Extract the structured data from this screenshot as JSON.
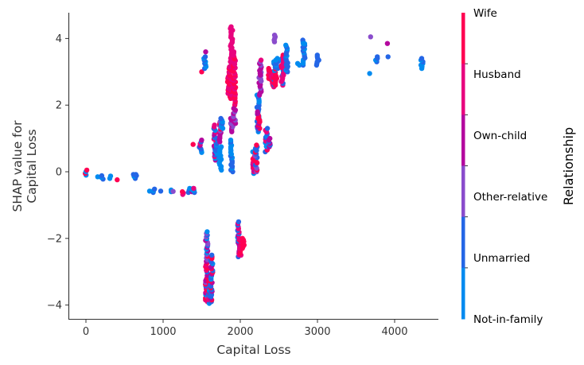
{
  "chart_data": {
    "type": "scatter",
    "title": "",
    "xlabel": "Capital Loss",
    "ylabel": [
      "SHAP value for",
      "Capital Loss"
    ],
    "xlim": [
      -220,
      4550
    ],
    "ylim": [
      -4.45,
      4.8
    ],
    "x_ticks": [
      0,
      1000,
      2000,
      3000,
      4000
    ],
    "x_tick_labels": [
      "0",
      "1000",
      "2000",
      "3000",
      "4000"
    ],
    "y_ticks": [
      4,
      2,
      0,
      -2,
      -4
    ],
    "y_tick_labels": [
      "4",
      "2",
      "0",
      "−2",
      "−4"
    ],
    "grid": false,
    "colorbar": {
      "title": "Relationship",
      "categories": [
        "Wife",
        "Husband",
        "Own-child",
        "Other-relative",
        "Unmarried",
        "Not-in-family"
      ],
      "colors": [
        "#ff0052",
        "#e8047e",
        "#b4089e",
        "#8a4ccc",
        "#2466e6",
        "#008bf0"
      ]
    },
    "point_size": 3.2,
    "clusters": [
      {
        "x": 0,
        "y_min": -0.1,
        "y_max": 0.05,
        "cats": [
          0,
          5,
          4,
          1
        ]
      },
      {
        "x": 155,
        "y_min": -0.15,
        "y_max": -0.13,
        "cats": [
          5
        ]
      },
      {
        "x": 213,
        "y_min": -0.22,
        "y_max": -0.12,
        "cats": [
          4,
          5
        ]
      },
      {
        "x": 320,
        "y_min": -0.2,
        "y_max": -0.13,
        "cats": [
          4,
          5
        ]
      },
      {
        "x": 419,
        "y_min": -0.24,
        "y_max": -0.22,
        "cats": [
          0
        ]
      },
      {
        "x": 625,
        "y_min": -0.2,
        "y_max": -0.08,
        "cats": [
          5,
          4
        ]
      },
      {
        "x": 653,
        "y_min": -0.12,
        "y_max": -0.08,
        "cats": [
          4
        ]
      },
      {
        "x": 810,
        "y_min": -0.58,
        "y_max": -0.56,
        "cats": [
          5
        ]
      },
      {
        "x": 880,
        "y_min": -0.62,
        "y_max": -0.52,
        "cats": [
          4,
          5
        ]
      },
      {
        "x": 974,
        "y_min": -0.58,
        "y_max": -0.56,
        "cats": [
          4
        ]
      },
      {
        "x": 1092,
        "y_min": -0.6,
        "y_max": -0.55,
        "cats": [
          5,
          4
        ]
      },
      {
        "x": 1138,
        "y_min": -0.59,
        "y_max": -0.57,
        "cats": [
          3
        ]
      },
      {
        "x": 1258,
        "y_min": -0.68,
        "y_max": -0.6,
        "cats": [
          0,
          1
        ]
      },
      {
        "x": 1340,
        "y_min": -0.62,
        "y_max": -0.5,
        "cats": [
          4,
          5
        ]
      },
      {
        "x": 1380,
        "y_min": -0.6,
        "y_max": -0.5,
        "cats": [
          4,
          5,
          2
        ]
      },
      {
        "x": 1408,
        "y_min": -0.62,
        "y_max": -0.5,
        "cats": [
          5,
          4,
          1
        ]
      },
      {
        "x": 1380,
        "y_min": 0.82,
        "y_max": 0.84,
        "cats": [
          0
        ]
      },
      {
        "x": 1485,
        "y_min": 0.58,
        "y_max": 0.95,
        "cats": [
          1,
          2,
          4,
          5
        ]
      },
      {
        "x": 1504,
        "y_min": 3.0,
        "y_max": 3.0,
        "cats": [
          0
        ]
      },
      {
        "x": 1540,
        "y_min": 3.1,
        "y_max": 3.45,
        "cats": [
          5,
          4
        ]
      },
      {
        "x": 1540,
        "y_min": 3.6,
        "y_max": 3.6,
        "cats": [
          2
        ]
      },
      {
        "x": 1564,
        "y_min": -3.9,
        "y_max": -1.8,
        "cats": [
          0,
          1,
          2,
          3,
          4,
          5
        ]
      },
      {
        "x": 1602,
        "y_min": -3.95,
        "y_max": -3.3,
        "cats": [
          5,
          4,
          1,
          0
        ]
      },
      {
        "x": 1628,
        "y_min": -3.9,
        "y_max": -2.5,
        "cats": [
          2,
          4,
          5,
          0
        ]
      },
      {
        "x": 1672,
        "y_min": 0.35,
        "y_max": 1.4,
        "cats": [
          2,
          1,
          4,
          5
        ]
      },
      {
        "x": 1705,
        "y_min": 0.5,
        "y_max": 1.0,
        "cats": [
          4,
          5
        ]
      },
      {
        "x": 1740,
        "y_min": 0.05,
        "y_max": 0.75,
        "cats": [
          5
        ]
      },
      {
        "x": 1740,
        "y_min": 0.9,
        "y_max": 1.5,
        "cats": [
          2,
          3,
          0
        ]
      },
      {
        "x": 1762,
        "y_min": 1.3,
        "y_max": 1.6,
        "cats": [
          5,
          4
        ]
      },
      {
        "x": 1848,
        "y_min": 2.35,
        "y_max": 2.85,
        "cats": [
          1,
          0
        ]
      },
      {
        "x": 1870,
        "y_min": 2.2,
        "y_max": 3.2,
        "cats": [
          1,
          0
        ]
      },
      {
        "x": 1887,
        "y_min": 3.3,
        "y_max": 4.35,
        "cats": [
          1
        ]
      },
      {
        "x": 1887,
        "y_min": 0.0,
        "y_max": 0.95,
        "cats": [
          5,
          4
        ]
      },
      {
        "x": 1887,
        "y_min": 1.2,
        "y_max": 1.6,
        "cats": [
          2,
          3
        ]
      },
      {
        "x": 1924,
        "y_min": 2.0,
        "y_max": 3.6,
        "cats": [
          1,
          0
        ]
      },
      {
        "x": 1924,
        "y_min": 1.4,
        "y_max": 1.9,
        "cats": [
          2,
          3
        ]
      },
      {
        "x": 1977,
        "y_min": -2.55,
        "y_max": -1.5,
        "cats": [
          2,
          5,
          4,
          1
        ]
      },
      {
        "x": 2001,
        "y_min": -2.5,
        "y_max": -2.0,
        "cats": [
          1,
          0
        ]
      },
      {
        "x": 2042,
        "y_min": -2.3,
        "y_max": -2.0,
        "cats": [
          0
        ]
      },
      {
        "x": 2174,
        "y_min": -0.05,
        "y_max": 0.6,
        "cats": [
          1,
          0,
          2,
          5
        ]
      },
      {
        "x": 2206,
        "y_min": 0.0,
        "y_max": 0.8,
        "cats": [
          0,
          4,
          3
        ]
      },
      {
        "x": 2231,
        "y_min": 1.2,
        "y_max": 2.3,
        "cats": [
          4,
          5
        ]
      },
      {
        "x": 2238,
        "y_min": 1.3,
        "y_max": 1.8,
        "cats": [
          0,
          2
        ]
      },
      {
        "x": 2258,
        "y_min": 2.3,
        "y_max": 3.3,
        "cats": [
          3,
          2
        ]
      },
      {
        "x": 2258,
        "y_min": 2.9,
        "y_max": 2.95,
        "cats": [
          2
        ]
      },
      {
        "x": 2282,
        "y_min": 3.35,
        "y_max": 3.35,
        "cats": [
          1
        ]
      },
      {
        "x": 2339,
        "y_min": 0.6,
        "y_max": 1.3,
        "cats": [
          5,
          4,
          0,
          1
        ]
      },
      {
        "x": 2377,
        "y_min": 0.75,
        "y_max": 1.0,
        "cats": [
          4,
          2
        ]
      },
      {
        "x": 2377,
        "y_min": 2.8,
        "y_max": 3.1,
        "cats": [
          1,
          0
        ]
      },
      {
        "x": 2415,
        "y_min": 2.6,
        "y_max": 3.0,
        "cats": [
          1,
          0
        ]
      },
      {
        "x": 2444,
        "y_min": 2.55,
        "y_max": 3.3,
        "cats": [
          0,
          1,
          5,
          4
        ]
      },
      {
        "x": 2444,
        "y_min": 3.9,
        "y_max": 4.1,
        "cats": [
          3
        ]
      },
      {
        "x": 2467,
        "y_min": 2.6,
        "y_max": 2.9,
        "cats": [
          0
        ]
      },
      {
        "x": 2472,
        "y_min": 3.1,
        "y_max": 3.4,
        "cats": [
          5,
          4
        ]
      },
      {
        "x": 2547,
        "y_min": 2.6,
        "y_max": 3.5,
        "cats": [
          5,
          4,
          0,
          1
        ]
      },
      {
        "x": 2559,
        "y_min": 2.9,
        "y_max": 3.4,
        "cats": [
          1
        ]
      },
      {
        "x": 2603,
        "y_min": 3.0,
        "y_max": 3.8,
        "cats": [
          4,
          5
        ]
      },
      {
        "x": 2754,
        "y_min": 3.2,
        "y_max": 3.25,
        "cats": [
          5
        ]
      },
      {
        "x": 2824,
        "y_min": 3.2,
        "y_max": 3.95,
        "cats": [
          5,
          4
        ]
      },
      {
        "x": 2824,
        "y_min": 3.85,
        "y_max": 3.85,
        "cats": [
          5
        ]
      },
      {
        "x": 3004,
        "y_min": 3.2,
        "y_max": 3.5,
        "cats": [
          4
        ]
      },
      {
        "x": 3683,
        "y_min": 2.95,
        "y_max": 2.95,
        "cats": [
          5
        ]
      },
      {
        "x": 3683,
        "y_min": 4.05,
        "y_max": 4.05,
        "cats": [
          3
        ]
      },
      {
        "x": 3770,
        "y_min": 3.3,
        "y_max": 3.45,
        "cats": [
          5,
          4
        ]
      },
      {
        "x": 3900,
        "y_min": 3.45,
        "y_max": 3.45,
        "cats": [
          4
        ]
      },
      {
        "x": 3900,
        "y_min": 3.85,
        "y_max": 3.85,
        "cats": [
          2
        ]
      },
      {
        "x": 4356,
        "y_min": 3.1,
        "y_max": 3.4,
        "cats": [
          5,
          4
        ]
      }
    ]
  }
}
